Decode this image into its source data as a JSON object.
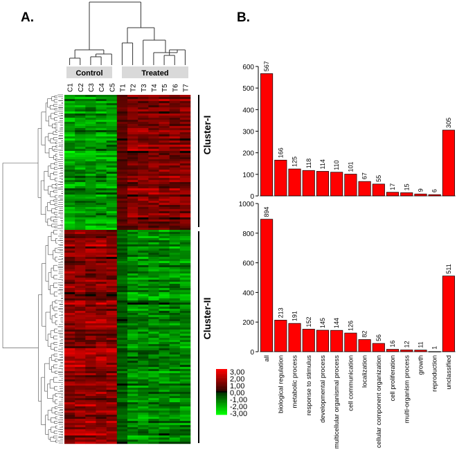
{
  "panels": {
    "a_label": "A.",
    "b_label": "B."
  },
  "heatmap": {
    "group_labels": {
      "control": "Control",
      "treated": "Treated"
    },
    "columns": [
      "C1",
      "C2",
      "C3",
      "C4",
      "C5",
      "T1",
      "T2",
      "T3",
      "T4",
      "T5",
      "T6",
      "T7"
    ],
    "clusters": [
      "Cluster-I",
      "Cluster-II"
    ],
    "legend": [
      "3,00",
      "2,00",
      "1,00",
      "0,00",
      "-1,00",
      "-2,00",
      "-3,00"
    ],
    "colors": {
      "high": "#ff0000",
      "mid": "#000000",
      "low": "#00ff00"
    }
  },
  "chart_data": [
    {
      "type": "bar",
      "title": "",
      "xlabel": "",
      "ylabel": "",
      "ylim": [
        0,
        600
      ],
      "yticks": [
        0,
        100,
        200,
        300,
        400,
        500,
        600
      ],
      "categories": [
        "all",
        "biological regulation",
        "metabolic process",
        "response to stimulus",
        "developmental process",
        "multicellular organismal process",
        "cell communication",
        "localization",
        "cellular component organization",
        "cell proliferation",
        "multi-organism process",
        "growth",
        "reproduction",
        "unclassified"
      ],
      "values": [
        567,
        166,
        125,
        118,
        114,
        110,
        101,
        67,
        55,
        17,
        15,
        9,
        6,
        305
      ],
      "bar_color": "#ff0000"
    },
    {
      "type": "bar",
      "title": "",
      "xlabel": "",
      "ylabel": "",
      "ylim": [
        0,
        1000
      ],
      "yticks": [
        0,
        200,
        400,
        600,
        800,
        1000
      ],
      "categories": [
        "all",
        "biological regulation",
        "metabolic process",
        "response to stimulus",
        "developmental process",
        "multicellular organismal process",
        "cell communication",
        "localization",
        "cellular component organization",
        "cell proliferation",
        "multi-organism process",
        "growth",
        "reproduction",
        "unclassified"
      ],
      "values": [
        894,
        213,
        191,
        152,
        145,
        144,
        126,
        82,
        56,
        16,
        12,
        11,
        1,
        511
      ],
      "bar_color": "#ff0000"
    }
  ]
}
